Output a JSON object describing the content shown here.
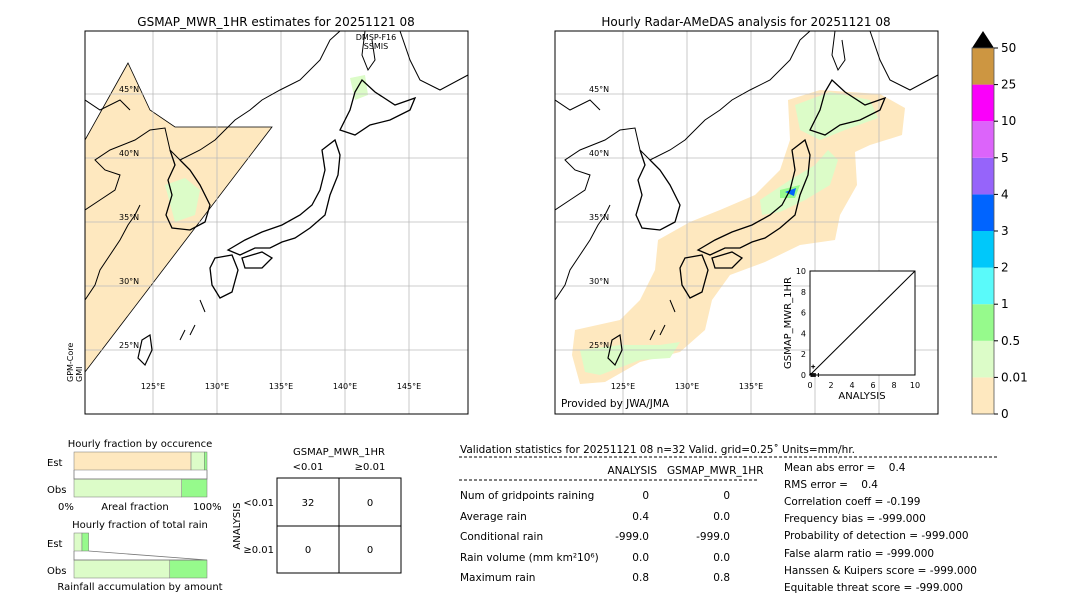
{
  "left_map": {
    "title": "GSMAP_MWR_1HR estimates for 20251121 08",
    "satellite_top": [
      "DMSP-F16",
      "SSMIS"
    ],
    "satellite_left": [
      "GPM-Core",
      "GMI"
    ],
    "lat_labels": [
      "25°N",
      "30°N",
      "35°N",
      "40°N",
      "45°N"
    ],
    "lon_labels": [
      "125°E",
      "130°E",
      "135°E",
      "140°E",
      "145°E"
    ]
  },
  "right_map": {
    "title": "Hourly Radar-AMeDAS analysis for 20251121 08",
    "lat_labels": [
      "25°N",
      "30°N",
      "35°N",
      "40°N",
      "45°N"
    ],
    "lon_labels": [
      "125°E",
      "130°E",
      "135°E"
    ],
    "credit": "Provided by JWA/JMA"
  },
  "colorbar": {
    "ticks": [
      "0",
      "0.01",
      "0.5",
      "1",
      "2",
      "3",
      "4",
      "5",
      "10",
      "25",
      "50"
    ],
    "colors": [
      "#fee8bf",
      "#dcfcc8",
      "#96fa8c",
      "#5afafa",
      "#00c8fa",
      "#0064ff",
      "#9664fa",
      "#dc64fa",
      "#fa00fa",
      "#cd9641"
    ],
    "extend_color": "#000000"
  },
  "chart_data": [
    {
      "type": "scatter",
      "title": "",
      "xlabel": "ANALYSIS",
      "ylabel": "GSMAP_MWR_1HR",
      "xlim": [
        0,
        10
      ],
      "ylim": [
        0,
        10
      ],
      "xticks": [
        "0",
        "2",
        "4",
        "6",
        "8",
        "10"
      ],
      "yticks": [
        "0",
        "2",
        "4",
        "6",
        "8",
        "10"
      ],
      "points": [
        [
          0.1,
          0.0
        ],
        [
          0.2,
          0.0
        ],
        [
          0.3,
          0.0
        ],
        [
          0.4,
          0.0
        ],
        [
          0.5,
          0.0
        ],
        [
          0.8,
          0.0
        ],
        [
          0.3,
          0.8
        ]
      ],
      "reference_line": "y=x"
    },
    {
      "type": "bar",
      "title": "Hourly fraction by occurence",
      "xlabel": "Areal fraction",
      "xtick_left": "0%",
      "xtick_right": "100%",
      "categories": [
        "Est",
        "Obs"
      ],
      "series_fractions": {
        "Est": [
          0.88,
          0.1,
          0.02
        ],
        "Obs": [
          0.81,
          0.19
        ]
      }
    },
    {
      "type": "bar",
      "title": "Hourly fraction of total rain",
      "xlabel": "Rainfall accumulation by amount",
      "categories": [
        "Est",
        "Obs"
      ],
      "series_fractions": {
        "Est": [
          0.06,
          0.05
        ],
        "Obs": [
          0.72,
          0.28
        ]
      }
    },
    {
      "type": "table",
      "title": "GSMAP_MWR_1HR",
      "col_headers": [
        "<0.01",
        "≥0.01"
      ],
      "row_label": "ANALYSIS",
      "row_headers": [
        "<0.01",
        "≥0.01"
      ],
      "cells": [
        [
          "32",
          "0"
        ],
        [
          "0",
          "0"
        ]
      ]
    }
  ],
  "stats": {
    "header": "Validation statistics for 20251121 08  n=32 Valid. grid=0.25˚ Units=mm/hr.",
    "col_analysis": "ANALYSIS",
    "col_gsmap": "GSMAP_MWR_1HR",
    "rows": [
      {
        "label": "Num of gridpoints raining",
        "analysis": "0",
        "gsmap": "0"
      },
      {
        "label": "Average rain",
        "analysis": "0.4",
        "gsmap": "0.0"
      },
      {
        "label": "Conditional rain",
        "analysis": "-999.0",
        "gsmap": "-999.0"
      },
      {
        "label": "Rain volume (mm km²10⁶)",
        "analysis": "0.0",
        "gsmap": "0.0"
      },
      {
        "label": "Maximum rain",
        "analysis": "0.8",
        "gsmap": "0.8"
      }
    ],
    "scores": [
      "Mean abs error =    0.4",
      "RMS error =    0.4",
      "Correlation coeff = -0.199",
      "Frequency bias = -999.000",
      "Probability of detection = -999.000",
      "False alarm ratio = -999.000",
      "Hanssen & Kuipers score = -999.000",
      "Equitable threat score = -999.000"
    ]
  }
}
